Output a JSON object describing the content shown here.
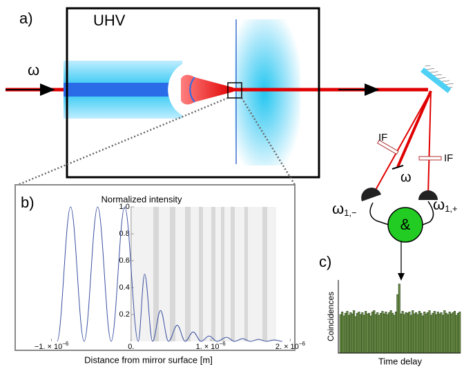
{
  "labels": {
    "panel_a": "a)",
    "panel_b": "b)",
    "panel_c": "c)",
    "uhv": "UHV",
    "omega_in": "ω",
    "if_left": "IF",
    "if_right": "IF",
    "omega_mid": "ω",
    "omega_minus": {
      "symbol": "ω",
      "sub": "1,−"
    },
    "omega_plus": {
      "symbol": "ω",
      "sub": "1,+"
    },
    "and_gate": "&"
  },
  "chart_data": [
    {
      "type": "line",
      "title": "Normalized intensity",
      "x_label": "Distance from mirror surface [m]",
      "xlim": [
        -1.3e-06,
        2.04e-06
      ],
      "ylim": [
        0,
        1
      ],
      "xticks": [
        {
          "value": -1e-06,
          "label": "−1. × 10",
          "exp": "−6"
        },
        {
          "value": 0,
          "label": "0."
        },
        {
          "value": 1e-06,
          "label": "1. × 10",
          "exp": "−6"
        },
        {
          "value": 2e-06,
          "label": "2. × 10",
          "exp": "−6"
        }
      ],
      "yticks": [
        0.2,
        0.4,
        0.6,
        0.8,
        {
          "value": 1,
          "label": "1.0"
        }
      ],
      "color": "#3a4fa0",
      "x": [
        -9.3e-07,
        -7.6e-07,
        -5.9e-07,
        -4.2e-07,
        -2.5e-07,
        -8e-08,
        9e-08,
        1.7e-07,
        2.7e-07,
        3.7e-07,
        4.7e-07,
        5.8e-07,
        6.8e-07,
        7.8e-07,
        8.8e-07,
        9.8e-07,
        1.08e-06,
        1.2e-06,
        1.3e-06,
        1.4e-06,
        1.5e-06,
        1.6e-06,
        1.7e-06,
        1.8e-06,
        1.9e-06
      ],
      "values": [
        0,
        1,
        0,
        1,
        0,
        1,
        0,
        0.5,
        0,
        0.23,
        0,
        0.12,
        0,
        0.07,
        0,
        0.04,
        0,
        0.03,
        0,
        0.02,
        0,
        0.015,
        0,
        0.01,
        0
      ]
    },
    {
      "type": "bar",
      "x_label": "Time delay",
      "y_label": "Coincidences",
      "ylim": [
        0,
        110
      ],
      "color": "#1f3d12",
      "values": [
        58,
        62,
        56,
        60,
        63,
        57,
        61,
        59,
        64,
        55,
        60,
        62,
        58,
        61,
        57,
        63,
        59,
        60,
        56,
        62,
        64,
        58,
        61,
        57,
        60,
        63,
        59,
        62,
        58,
        61,
        64,
        60,
        57,
        62,
        88,
        104,
        59,
        63,
        58,
        61,
        60,
        62,
        57,
        64,
        59,
        61,
        58,
        63,
        60,
        56,
        62,
        59,
        61,
        64,
        57,
        60,
        63,
        58,
        62,
        59,
        61,
        57,
        64,
        60,
        58,
        62,
        59,
        61,
        63,
        57,
        60,
        62
      ]
    }
  ]
}
